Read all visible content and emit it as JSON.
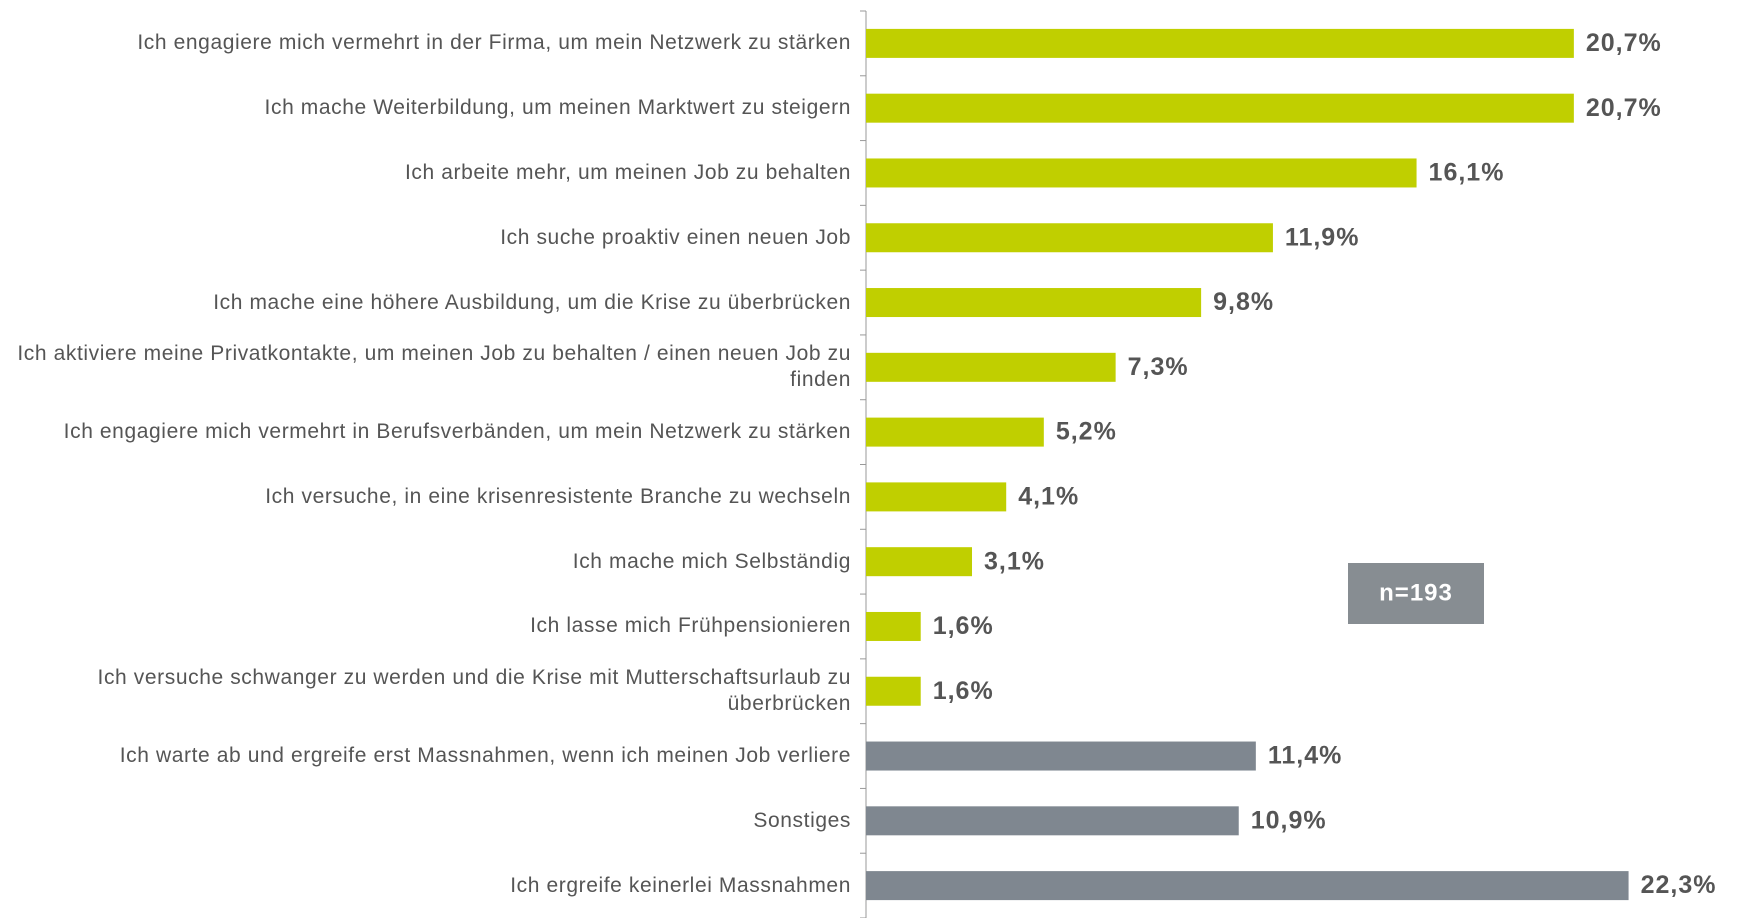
{
  "chart_data": {
    "type": "bar",
    "orientation": "horizontal",
    "categories": [
      "Ich engagiere mich vermehrt in der Firma, um mein Netzwerk zu stärken",
      "Ich mache Weiterbildung, um meinen Marktwert zu steigern",
      "Ich arbeite mehr, um meinen Job zu behalten",
      "Ich suche proaktiv einen neuen Job",
      "Ich mache eine höhere Ausbildung, um die Krise zu überbrücken",
      "Ich aktiviere meine Privatkontakte, um meinen Job zu behalten / einen neuen Job zu finden",
      "Ich engagiere mich vermehrt in Berufsverbänden, um mein Netzwerk zu stärken",
      "Ich versuche, in eine krisenresistente Branche zu wechseln",
      "Ich mache mich Selbständig",
      "Ich lasse mich Frühpensionieren",
      "Ich versuche schwanger zu werden und die Krise mit Mutterschaftsurlaub zu überbrücken",
      "Ich warte ab und ergreife erst Massnahmen, wenn ich meinen Job verliere",
      "Sonstiges",
      "Ich ergreife keinerlei Massnahmen"
    ],
    "values": [
      20.7,
      20.7,
      16.1,
      11.9,
      9.8,
      7.3,
      5.2,
      4.1,
      3.1,
      1.6,
      1.6,
      11.4,
      10.9,
      22.3
    ],
    "value_labels": [
      "20,7%",
      "20,7%",
      "16,1%",
      "11,9%",
      "9,8%",
      "7,3%",
      "5,2%",
      "4,1%",
      "3,1%",
      "1,6%",
      "1,6%",
      "11,4%",
      "10,9%",
      "22,3%"
    ],
    "colors": [
      "#c0cf00",
      "#c0cf00",
      "#c0cf00",
      "#c0cf00",
      "#c0cf00",
      "#c0cf00",
      "#c0cf00",
      "#c0cf00",
      "#c0cf00",
      "#c0cf00",
      "#c0cf00",
      "#7f8790",
      "#7f8790",
      "#7f8790"
    ],
    "xlim": [
      0,
      25.5
    ],
    "annotation": "n=193"
  }
}
